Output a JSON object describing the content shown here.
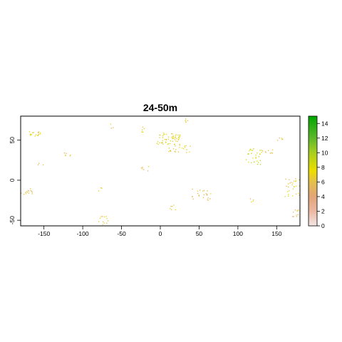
{
  "chart_data": {
    "type": "heatmap",
    "title": "24-50m",
    "xlabel": "",
    "ylabel": "",
    "xlim": [
      -180,
      180
    ],
    "ylim": [
      -57,
      80
    ],
    "x_ticks": [
      -150,
      -100,
      -50,
      0,
      50,
      100,
      150
    ],
    "y_ticks": [
      -50,
      0,
      50
    ],
    "legend": {
      "placement": "right",
      "range": [
        0,
        15
      ],
      "ticks": [
        0,
        2,
        4,
        6,
        8,
        10,
        12,
        14
      ],
      "colors": [
        {
          "value": 0,
          "color": "#f2e6e6"
        },
        {
          "value": 2,
          "color": "#ebb8a2"
        },
        {
          "value": 4,
          "color": "#e2a578"
        },
        {
          "value": 6,
          "color": "#e4c04c"
        },
        {
          "value": 7.5,
          "color": "#ecde00"
        },
        {
          "value": 10,
          "color": "#a8cf1f"
        },
        {
          "value": 12,
          "color": "#5db82a"
        },
        {
          "value": 15,
          "color": "#00a600"
        }
      ]
    },
    "clusters": [
      {
        "x": [
          -172,
          -155
        ],
        "y": [
          55,
          62
        ],
        "v": 7,
        "n": 18
      },
      {
        "x": [
          -180,
          -165
        ],
        "y": [
          -18,
          -10
        ],
        "v": 6,
        "n": 14
      },
      {
        "x": [
          -125,
          -115
        ],
        "y": [
          28,
          35
        ],
        "v": 6,
        "n": 6
      },
      {
        "x": [
          -80,
          -75
        ],
        "y": [
          -15,
          -8
        ],
        "v": 6,
        "n": 3
      },
      {
        "x": [
          -80,
          -65
        ],
        "y": [
          -55,
          -40
        ],
        "v": 6,
        "n": 12
      },
      {
        "x": [
          -25,
          -20
        ],
        "y": [
          60,
          67
        ],
        "v": 7,
        "n": 6
      },
      {
        "x": [
          -5,
          25
        ],
        "y": [
          45,
          60
        ],
        "v": 7,
        "n": 60
      },
      {
        "x": [
          10,
          40
        ],
        "y": [
          35,
          45
        ],
        "v": 7,
        "n": 22
      },
      {
        "x": [
          30,
          35
        ],
        "y": [
          72,
          78
        ],
        "v": 6,
        "n": 5
      },
      {
        "x": [
          -25,
          -15
        ],
        "y": [
          10,
          18
        ],
        "v": 6,
        "n": 6
      },
      {
        "x": [
          10,
          20
        ],
        "y": [
          -38,
          -30
        ],
        "v": 6,
        "n": 6
      },
      {
        "x": [
          40,
          65
        ],
        "y": [
          -25,
          -10
        ],
        "v": 6,
        "n": 22
      },
      {
        "x": [
          110,
          130
        ],
        "y": [
          20,
          40
        ],
        "v": 8,
        "n": 30
      },
      {
        "x": [
          130,
          145
        ],
        "y": [
          34,
          40
        ],
        "v": 6,
        "n": 8
      },
      {
        "x": [
          115,
          120
        ],
        "y": [
          -30,
          -22
        ],
        "v": 6,
        "n": 4
      },
      {
        "x": [
          150,
          158
        ],
        "y": [
          50,
          55
        ],
        "v": 6,
        "n": 5
      },
      {
        "x": [
          160,
          180
        ],
        "y": [
          -20,
          5
        ],
        "v": 7,
        "n": 28
      },
      {
        "x": [
          170,
          180
        ],
        "y": [
          -45,
          -35
        ],
        "v": 6,
        "n": 10
      },
      {
        "x": [
          -65,
          -60
        ],
        "y": [
          65,
          72
        ],
        "v": 6,
        "n": 3
      },
      {
        "x": [
          -160,
          -150
        ],
        "y": [
          18,
          22
        ],
        "v": 5,
        "n": 3
      }
    ]
  }
}
